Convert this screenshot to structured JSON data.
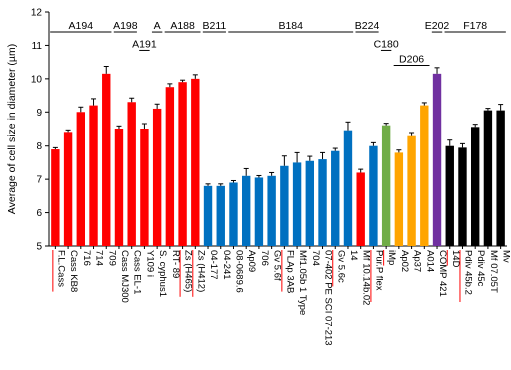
{
  "chart_data": {
    "type": "bar",
    "title": "",
    "xlabel": "",
    "ylabel": "Average of cell size in diameter (µm)",
    "ylim": [
      5,
      12
    ],
    "yticks": [
      5,
      6,
      7,
      8,
      9,
      10,
      11,
      12
    ],
    "grid": false,
    "error_bars": true,
    "categories": [
      "F.L.Cass",
      "Cass KB8",
      "716",
      "714",
      "709",
      "Cass MJ300",
      "Cass EL-1",
      "Y109 i",
      "S. cyphus1",
      "RT- 89",
      "Zs (H465)",
      "Zs (H412)",
      "04-177",
      "04-241",
      "08-0689.6",
      "Ap09",
      "706",
      "Gv 5.6f",
      "FLAp 3AB",
      "Mf1.05b 1 Type",
      "704",
      "07-402 PE SCI 07-213",
      "Gv 5.6c",
      "14",
      "Mf 10.14b.02",
      "Pur.P flex",
      "iMp",
      "Ap02",
      "Ap37",
      "A014",
      "COMP 421",
      "14D",
      "Pdiv 45b.2",
      "Pdiv 45c",
      "Mf 07.05T",
      "Mv"
    ],
    "values": [
      7.9,
      8.4,
      9.0,
      9.2,
      10.15,
      8.5,
      9.3,
      8.5,
      9.1,
      9.75,
      9.9,
      10.0,
      6.8,
      6.8,
      6.9,
      7.1,
      7.05,
      7.1,
      7.4,
      7.5,
      7.55,
      7.6,
      7.85,
      8.45,
      7.2,
      8.0,
      8.6,
      7.8,
      8.3,
      9.2,
      10.15,
      8.0,
      7.95,
      8.55,
      9.05,
      9.05
    ],
    "errors": [
      0.05,
      0.06,
      0.15,
      0.2,
      0.22,
      0.08,
      0.12,
      0.15,
      0.14,
      0.1,
      0.06,
      0.12,
      0.06,
      0.06,
      0.06,
      0.22,
      0.06,
      0.1,
      0.3,
      0.3,
      0.14,
      0.2,
      0.08,
      0.25,
      0.1,
      0.1,
      0.06,
      0.08,
      0.08,
      0.08,
      0.18,
      0.18,
      0.12,
      0.08,
      0.06,
      0.18
    ],
    "bar_colors": [
      "#ff0000",
      "#ff0000",
      "#ff0000",
      "#ff0000",
      "#ff0000",
      "#ff0000",
      "#ff0000",
      "#ff0000",
      "#ff0000",
      "#ff0000",
      "#ff0000",
      "#ff0000",
      "#0070c0",
      "#0070c0",
      "#0070c0",
      "#0070c0",
      "#0070c0",
      "#0070c0",
      "#0070c0",
      "#0070c0",
      "#0070c0",
      "#0070c0",
      "#0070c0",
      "#0070c0",
      "#ff0000",
      "#0070c0",
      "#70ad47",
      "#ffa500",
      "#ffa500",
      "#ffa500",
      "#7030a0",
      "#000000",
      "#000000",
      "#000000",
      "#000000",
      "#000000"
    ],
    "highlighted_labels": [
      0,
      10,
      11,
      18,
      22,
      25,
      26,
      31,
      32
    ],
    "group_brackets": [
      {
        "label": "A194",
        "from": 0,
        "to": 4,
        "level": 11.4
      },
      {
        "label": "A198",
        "from": 5,
        "to": 6,
        "level": 11.4
      },
      {
        "label": "A191",
        "from": 7,
        "to": 7,
        "level": 10.85
      },
      {
        "label": "A",
        "from": 8,
        "to": 8,
        "level": 11.4
      },
      {
        "label": "A188",
        "from": 9,
        "to": 11,
        "level": 11.4
      },
      {
        "label": "B211",
        "from": 12,
        "to": 13,
        "level": 11.4
      },
      {
        "label": "B184",
        "from": 14,
        "to": 23,
        "level": 11.4
      },
      {
        "label": "B224",
        "from": 24,
        "to": 25,
        "level": 11.4
      },
      {
        "label": "C180",
        "from": 26,
        "to": 26,
        "level": 10.85
      },
      {
        "label": "D206",
        "from": 27,
        "to": 29,
        "level": 10.4
      },
      {
        "label": "E202",
        "from": 30,
        "to": 30,
        "level": 11.4
      },
      {
        "label": "F178",
        "from": 31,
        "to": 35,
        "level": 11.4
      }
    ]
  }
}
